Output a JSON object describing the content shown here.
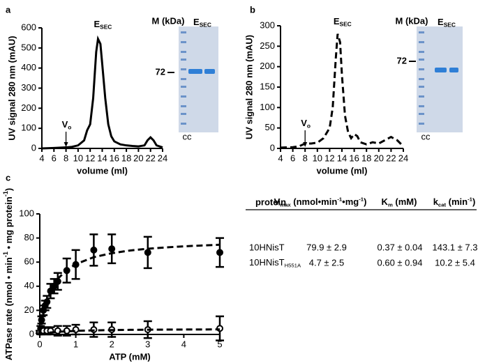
{
  "panel_labels": [
    "a",
    "b",
    "c"
  ],
  "chart_data": [
    {
      "type": "line",
      "y_label": "UV signal 280 nm (mAU)",
      "x_label": "volume (ml)",
      "xlim": [
        4,
        24
      ],
      "xticks": [
        4,
        6,
        8,
        10,
        12,
        14,
        16,
        18,
        20,
        22,
        24
      ],
      "ylim": [
        0,
        600
      ],
      "yticks": [
        0,
        100,
        200,
        300,
        400,
        500,
        600
      ],
      "annotations": [
        [
          "E",
          {
            "sub": "SEC"
          }
        ],
        [
          "V",
          {
            "sub": "o"
          }
        ]
      ],
      "series": [
        {
          "color": "#000000",
          "dashed": false,
          "x": [
            4,
            6,
            8,
            9,
            10,
            11,
            11.5,
            12,
            12.5,
            13,
            13.3,
            13.7,
            14,
            14.5,
            15,
            15.5,
            16,
            17,
            18,
            19,
            20,
            21,
            21.5,
            22,
            22.5,
            23,
            24
          ],
          "values": [
            0,
            2,
            5,
            8,
            15,
            40,
            90,
            120,
            250,
            480,
            545,
            520,
            420,
            250,
            120,
            60,
            35,
            20,
            15,
            12,
            10,
            15,
            40,
            55,
            40,
            15,
            5
          ]
        }
      ]
    },
    {
      "type": "line",
      "y_label": "UV signal 280 nm (mAU)",
      "x_label": "volume (ml)",
      "xlim": [
        4,
        24
      ],
      "xticks": [
        4,
        6,
        8,
        10,
        12,
        14,
        16,
        18,
        20,
        22,
        24
      ],
      "ylim": [
        0,
        300
      ],
      "yticks": [
        0,
        50,
        100,
        150,
        200,
        250,
        300
      ],
      "annotations": [
        [
          "E",
          {
            "sub": "SEC"
          }
        ],
        [
          "V",
          {
            "sub": "o"
          }
        ]
      ],
      "series": [
        {
          "color": "#000000",
          "dashed": true,
          "x": [
            4,
            6,
            7,
            8,
            9,
            10,
            11,
            12,
            12.5,
            13,
            13.3,
            13.7,
            14,
            14.5,
            15,
            15.5,
            16,
            16.5,
            17,
            18,
            19,
            20,
            21,
            22,
            23,
            24
          ],
          "values": [
            2,
            3,
            5,
            12,
            12,
            14,
            25,
            50,
            100,
            220,
            280,
            260,
            180,
            80,
            40,
            25,
            35,
            30,
            15,
            10,
            15,
            12,
            20,
            28,
            20,
            5
          ]
        }
      ]
    },
    {
      "type": "scatter",
      "y_label": [
        "ATPase rate (nmol • min",
        {
          "sup": "-1"
        },
        " • mg protein",
        {
          "sup": "-1"
        },
        ")"
      ],
      "x_label": "ATP (mM)",
      "xlim": [
        0,
        5
      ],
      "xticks": [
        0,
        1,
        2,
        3,
        4,
        5
      ],
      "ylim": [
        0,
        100
      ],
      "yticks": [
        0,
        20,
        40,
        60,
        80,
        100
      ],
      "series": [
        {
          "marker": "filled",
          "color": "#000000",
          "x": [
            0.025,
            0.05,
            0.1,
            0.15,
            0.2,
            0.3,
            0.4,
            0.5,
            0.75,
            1,
            1.5,
            2,
            3,
            5
          ],
          "values": [
            5,
            12,
            20,
            24,
            27,
            36,
            40,
            44,
            53,
            58,
            70,
            71,
            68,
            68
          ],
          "errors": [
            2,
            3,
            4,
            4,
            5,
            6,
            6,
            7,
            10,
            12,
            13,
            12,
            13,
            12
          ]
        },
        {
          "marker": "open",
          "color": "#000000",
          "x": [
            0,
            0.05,
            0.1,
            0.2,
            0.3,
            0.5,
            0.75,
            1,
            1.5,
            2,
            3,
            5
          ],
          "values": [
            2,
            2,
            3,
            3,
            3,
            3,
            3,
            4,
            4,
            4,
            4,
            5
          ],
          "errors": [
            1,
            2,
            2,
            3,
            3,
            4,
            4,
            4,
            6,
            6,
            7,
            10
          ]
        },
        {
          "marker": "dashed-line",
          "color": "#000000",
          "x": [
            0,
            0.1,
            0.2,
            0.3,
            0.5,
            0.75,
            1,
            1.5,
            2,
            2.5,
            3,
            3.5,
            4,
            4.5,
            5
          ],
          "values": [
            0,
            17.0,
            28.0,
            35.7,
            46.2,
            53.5,
            58.3,
            64.1,
            67.4,
            69.6,
            71.1,
            72.2,
            73.1,
            73.8,
            74.4
          ]
        },
        {
          "marker": "dashed-line",
          "color": "#000000",
          "x": [
            0,
            0.1,
            0.2,
            0.3,
            0.5,
            0.75,
            1,
            1.5,
            2,
            2.5,
            3,
            3.5,
            4,
            4.5,
            5
          ],
          "values": [
            0,
            0.67,
            1.18,
            1.57,
            2.14,
            2.61,
            2.94,
            3.36,
            3.62,
            3.8,
            3.92,
            4.01,
            4.08,
            4.14,
            4.2
          ]
        }
      ]
    }
  ],
  "gels": [
    {
      "header": "M (kDa)",
      "lane_label": [
        "E",
        {
          "sub": "SEC"
        }
      ],
      "marker": "72",
      "footer": "cc"
    },
    {
      "header": "M (kDa)",
      "lane_label": [
        "E",
        {
          "sub": "SEC"
        }
      ],
      "marker": "72",
      "footer": "cc"
    }
  ],
  "table": {
    "header": [
      "protein",
      [
        "V",
        {
          "sub": "max"
        },
        " (nmol•min",
        {
          "sup": "-1"
        },
        "•mg",
        {
          "sup": "-1"
        },
        ")"
      ],
      [
        "K",
        {
          "sub": "m"
        },
        " (mM)"
      ],
      [
        "k",
        {
          "sub": "cat"
        },
        " (min",
        {
          "sup": "-1"
        },
        ")"
      ]
    ],
    "rows": [
      [
        "10HNisT",
        "79.9 ± 2.9",
        "0.37 ± 0.04",
        "143.1 ± 7.3"
      ],
      [
        [
          "10HNisT",
          {
            "sub": "H551A"
          }
        ],
        "4.7 ± 2.5",
        "0.60 ± 0.94",
        "10.2 ± 5.4"
      ]
    ]
  }
}
